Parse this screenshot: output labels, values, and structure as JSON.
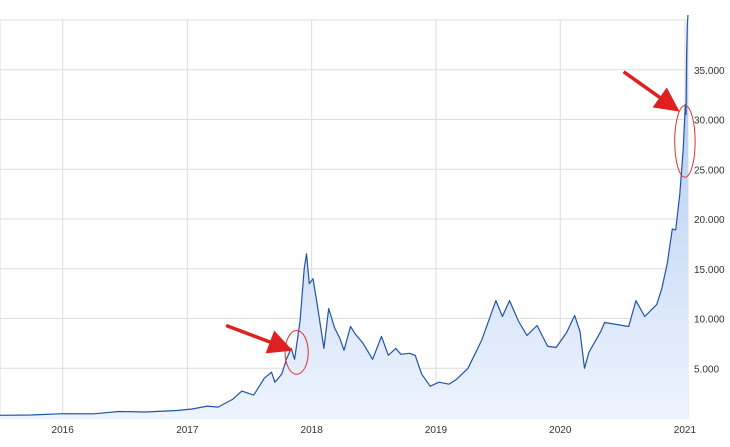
{
  "chart_data": {
    "type": "area",
    "title": "",
    "xlabel": "",
    "ylabel": "",
    "x_tick_labels": [
      "2016",
      "2017",
      "2018",
      "2019",
      "2020",
      "2021"
    ],
    "y_tick_labels": [
      "5.000",
      "10.000",
      "15.000",
      "20.000",
      "25.000",
      "30.000",
      "35.000"
    ],
    "y_ticks": [
      5000,
      10000,
      15000,
      20000,
      25000,
      30000,
      35000
    ],
    "ylim": [
      0,
      40000
    ],
    "xlim": [
      "2015-07-01",
      "2021-01-10"
    ],
    "grid": true,
    "series": [
      {
        "points": [
          [
            "2015-07-01",
            270
          ],
          [
            "2015-10-01",
            300
          ],
          [
            "2016-01-01",
            430
          ],
          [
            "2016-04-01",
            420
          ],
          [
            "2016-06-15",
            650
          ],
          [
            "2016-09-01",
            600
          ],
          [
            "2016-12-01",
            750
          ],
          [
            "2017-01-15",
            900
          ],
          [
            "2017-03-01",
            1200
          ],
          [
            "2017-04-01",
            1100
          ],
          [
            "2017-05-15",
            1900
          ],
          [
            "2017-06-10",
            2700
          ],
          [
            "2017-07-15",
            2300
          ],
          [
            "2017-08-15",
            4000
          ],
          [
            "2017-09-05",
            4600
          ],
          [
            "2017-09-15",
            3600
          ],
          [
            "2017-10-05",
            4400
          ],
          [
            "2017-10-20",
            6000
          ],
          [
            "2017-11-02",
            7000
          ],
          [
            "2017-11-12",
            5900
          ],
          [
            "2017-11-28",
            9800
          ],
          [
            "2017-12-10",
            15000
          ],
          [
            "2017-12-17",
            16500
          ],
          [
            "2017-12-25",
            13500
          ],
          [
            "2018-01-05",
            14000
          ],
          [
            "2018-01-17",
            11500
          ],
          [
            "2018-02-06",
            7000
          ],
          [
            "2018-02-20",
            11000
          ],
          [
            "2018-03-10",
            9000
          ],
          [
            "2018-03-25",
            8000
          ],
          [
            "2018-04-06",
            6800
          ],
          [
            "2018-04-25",
            9200
          ],
          [
            "2018-05-10",
            8400
          ],
          [
            "2018-06-01",
            7500
          ],
          [
            "2018-06-29",
            5900
          ],
          [
            "2018-07-25",
            8200
          ],
          [
            "2018-08-14",
            6300
          ],
          [
            "2018-09-05",
            7000
          ],
          [
            "2018-09-20",
            6400
          ],
          [
            "2018-10-15",
            6500
          ],
          [
            "2018-11-01",
            6300
          ],
          [
            "2018-11-20",
            4400
          ],
          [
            "2018-12-15",
            3200
          ],
          [
            "2019-01-10",
            3600
          ],
          [
            "2019-02-08",
            3400
          ],
          [
            "2019-03-01",
            3850
          ],
          [
            "2019-04-05",
            5000
          ],
          [
            "2019-05-15",
            7800
          ],
          [
            "2019-06-26",
            11800
          ],
          [
            "2019-07-15",
            10200
          ],
          [
            "2019-08-05",
            11800
          ],
          [
            "2019-09-01",
            9700
          ],
          [
            "2019-09-25",
            8300
          ],
          [
            "2019-10-25",
            9300
          ],
          [
            "2019-11-25",
            7200
          ],
          [
            "2019-12-20",
            7100
          ],
          [
            "2020-01-20",
            8600
          ],
          [
            "2020-02-12",
            10300
          ],
          [
            "2020-02-28",
            8700
          ],
          [
            "2020-03-12",
            5000
          ],
          [
            "2020-03-25",
            6600
          ],
          [
            "2020-04-29",
            8700
          ],
          [
            "2020-05-10",
            9600
          ],
          [
            "2020-06-15",
            9400
          ],
          [
            "2020-07-20",
            9200
          ],
          [
            "2020-08-10",
            11800
          ],
          [
            "2020-09-05",
            10200
          ],
          [
            "2020-10-10",
            11400
          ],
          [
            "2020-10-25",
            13000
          ],
          [
            "2020-11-10",
            15500
          ],
          [
            "2020-11-25",
            19000
          ],
          [
            "2020-12-05",
            18900
          ],
          [
            "2020-12-17",
            22500
          ],
          [
            "2020-12-27",
            27000
          ],
          [
            "2021-01-02",
            31500
          ],
          [
            "2021-01-04",
            30500
          ],
          [
            "2021-01-06",
            36500
          ],
          [
            "2021-01-08",
            39500
          ],
          [
            "2021-01-10",
            40500
          ]
        ]
      }
    ],
    "annotations": [
      {
        "type": "ellipse",
        "cx": "2017-11-18",
        "cy": 6600,
        "rx_days": 34,
        "ry": 2200,
        "color": "#e03030"
      },
      {
        "type": "arrow",
        "from": [
          "2017-04-25",
          9300
        ],
        "to": [
          "2017-10-28",
          6900
        ],
        "color": "#e02020"
      },
      {
        "type": "ellipse",
        "cx": "2021-01-01",
        "cy": 27800,
        "rx_days": 30,
        "ry": 3600,
        "color": "#e03030"
      },
      {
        "type": "arrow",
        "from": [
          "2020-07-05",
          34800
        ],
        "to": [
          "2020-12-08",
          31000
        ],
        "color": "#e02020"
      }
    ],
    "colors": {
      "line": "#2155a6",
      "area_top": "#a8c4ef",
      "area_bottom": "#eef4fe",
      "grid": "#dcdcdc",
      "annotation": "#e02020"
    }
  }
}
